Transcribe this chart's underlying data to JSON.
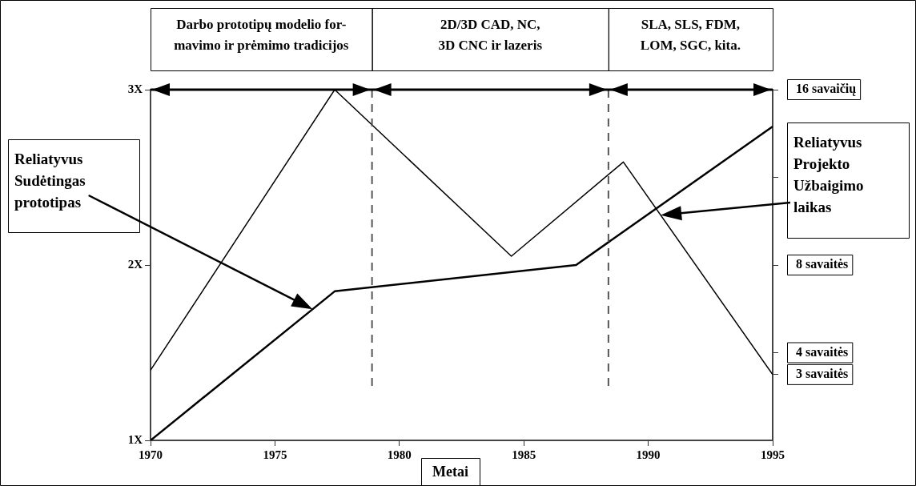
{
  "chart_data": {
    "type": "line",
    "xlabel": "Metai",
    "xlim": [
      1970,
      1995
    ],
    "xticks": [
      1970,
      1975,
      1980,
      1985,
      1990,
      1995
    ],
    "ylim": [
      1,
      3
    ],
    "yticks": [
      {
        "value": 1,
        "label": "1X"
      },
      {
        "value": 2,
        "label": "2X"
      },
      {
        "value": 3,
        "label": "3X"
      }
    ],
    "y2lim": [
      0,
      16
    ],
    "y2ticks": [
      {
        "value": 3,
        "label": "3 savaitės"
      },
      {
        "value": 4,
        "label": "4 savaitės"
      },
      {
        "value": 8,
        "label": "8 savaitės"
      },
      {
        "value": 12,
        "label": null
      },
      {
        "value": 16,
        "label": "16 savaičių"
      }
    ],
    "series": [
      {
        "color": "#000000",
        "x": [
          1970,
          1977.4,
          1987.1,
          1995
        ],
        "values": [
          1,
          1.85,
          2.0,
          2.79
        ]
      },
      {
        "color": "#000000",
        "axis": "y2",
        "x": [
          1970,
          1977.4,
          1984.5,
          1989.0,
          1995
        ],
        "values": [
          3.2,
          16,
          8.4,
          12.7,
          3
        ]
      }
    ],
    "ref_lines": [
      {
        "axis": "x",
        "value": 1978.9,
        "line_style": "dashed"
      },
      {
        "axis": "x",
        "value": 1988.4,
        "line_style": "dashed"
      },
      {
        "axis": "y",
        "value": 3,
        "line_style": "solid"
      }
    ],
    "annotations": [
      "Darbo prototipų modelio for-\nmavimo ir prėmimo tradicijos",
      "2D/3D CAD, NC,\n3D CNC ir lazeris",
      "SLA, SLS, FDM,\nLOM, SGC, kita.",
      "Reliatyvus\nSudėtingas\nprototipas",
      "Reliatyvus\nProjekto\nUžbaigimo\nlaikas"
    ],
    "legend": false,
    "grid": false,
    "marker": "none",
    "line_style": "solid"
  }
}
